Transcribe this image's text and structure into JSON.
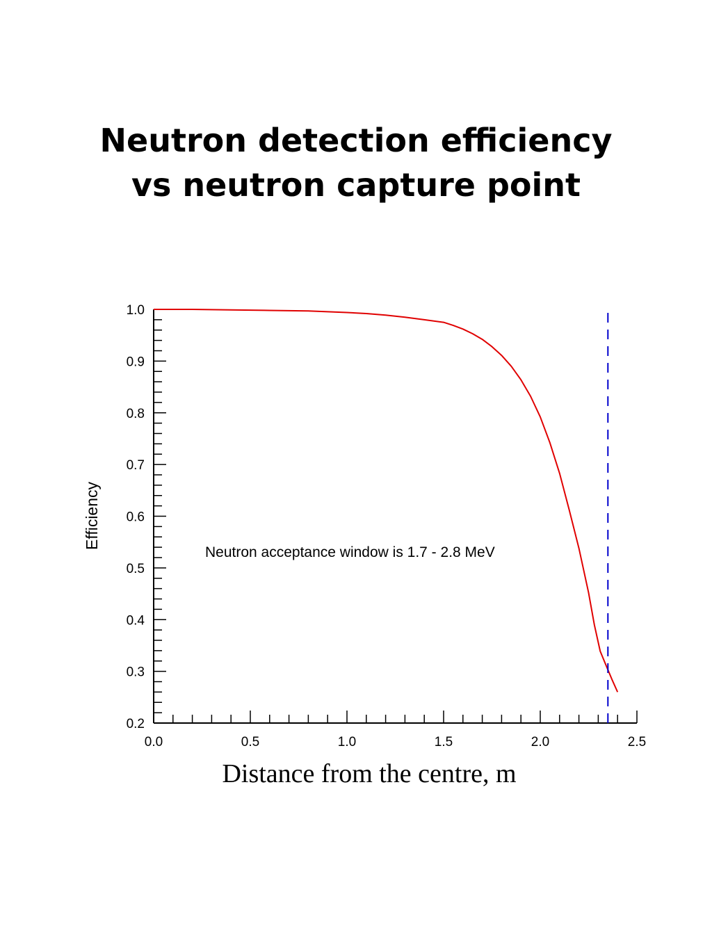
{
  "slide": {
    "title_line1": "Neutron detection efficiency",
    "title_line2": "vs neutron capture point"
  },
  "chart_data": {
    "type": "line",
    "xlabel": "Distance from the centre, m",
    "ylabel": "Efficiency",
    "xlim": [
      0.0,
      2.5
    ],
    "ylim": [
      0.2,
      1.0
    ],
    "xticks": [
      "0.0",
      "0.5",
      "1.0",
      "1.5",
      "2.0",
      "2.5"
    ],
    "yticks": [
      "0.2",
      "0.3",
      "0.4",
      "0.5",
      "0.6",
      "0.7",
      "0.8",
      "0.9",
      "1.0"
    ],
    "grid": false,
    "annotation": "Neutron acceptance window is 1.7 - 2.8 MeV",
    "series": [
      {
        "color": "#e00000",
        "x": [
          0.0,
          0.2,
          0.4,
          0.6,
          0.8,
          1.0,
          1.1,
          1.2,
          1.3,
          1.4,
          1.5,
          1.55,
          1.6,
          1.65,
          1.7,
          1.75,
          1.8,
          1.85,
          1.9,
          1.95,
          2.0,
          2.05,
          2.1,
          2.15,
          2.2,
          2.25,
          2.28,
          2.31,
          2.34,
          2.37,
          2.4
        ],
        "y": [
          1.0,
          1.0,
          0.999,
          0.998,
          0.997,
          0.994,
          0.992,
          0.989,
          0.985,
          0.98,
          0.975,
          0.969,
          0.962,
          0.953,
          0.942,
          0.928,
          0.911,
          0.89,
          0.864,
          0.832,
          0.792,
          0.742,
          0.683,
          0.612,
          0.538,
          0.452,
          0.39,
          0.339,
          0.312,
          0.285,
          0.26
        ]
      },
      {
        "color": "#0000cc",
        "style": "dashed",
        "x": [
          2.35,
          2.35
        ],
        "y": [
          0.2,
          1.0
        ]
      }
    ]
  }
}
